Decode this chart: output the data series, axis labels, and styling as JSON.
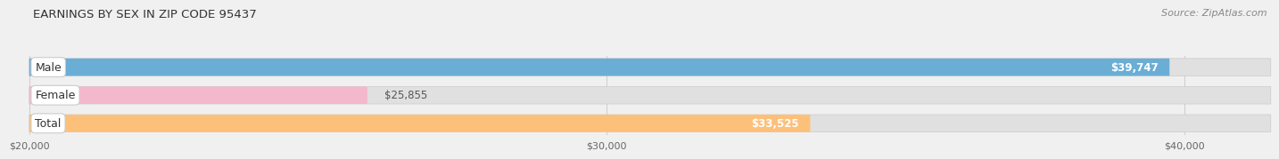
{
  "title": "EARNINGS BY SEX IN ZIP CODE 95437",
  "source": "Source: ZipAtlas.com",
  "categories": [
    "Male",
    "Female",
    "Total"
  ],
  "values": [
    39747,
    25855,
    33525
  ],
  "bar_colors": [
    "#6aaed6",
    "#f4b8cc",
    "#fdc07a"
  ],
  "value_labels": [
    "$39,747",
    "$25,855",
    "$33,525"
  ],
  "label_inside": [
    true,
    false,
    true
  ],
  "xmin": 20000,
  "xmax": 41500,
  "xticks": [
    20000,
    30000,
    40000
  ],
  "xtick_labels": [
    "$20,000",
    "$30,000",
    "$40,000"
  ],
  "background_color": "#f0f0f0",
  "bar_bg_color": "#e0e0e0",
  "title_fontsize": 9.5,
  "source_fontsize": 8,
  "bar_height": 0.62,
  "label_fontsize": 9,
  "value_fontsize": 8.5,
  "bar_border_color": "#cccccc"
}
